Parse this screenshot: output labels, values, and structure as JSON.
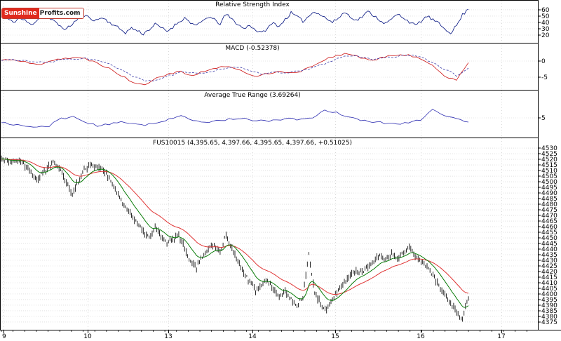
{
  "logo": {
    "brand_red": "Sunshine",
    "brand_rest": "Profits.com"
  },
  "panels": {
    "rsi": {
      "title": "Relative Strength Index"
    },
    "macd": {
      "title": "MACD (-0.52378)"
    },
    "atr": {
      "title": "Average True Range (3.69264)"
    },
    "price": {
      "title": "FUS10015 (4,395.65, 4,397.66, 4,395.65, 4,397.66, +0.51025)"
    }
  },
  "x_axis": {
    "labels": [
      "9",
      "10",
      "13",
      "14",
      "15",
      "16",
      "17"
    ]
  },
  "chart_data": {
    "type": "multi-panel-financial",
    "rsi": {
      "type": "line",
      "title": "Relative Strength Index",
      "ylim": [
        7.8,
        74.4
      ],
      "yticks": [
        60,
        50,
        40,
        30,
        20
      ],
      "color": "#00107f",
      "values": [
        50,
        46,
        40,
        47,
        43,
        36,
        44,
        52,
        47,
        41,
        34,
        29,
        38,
        46,
        51,
        47,
        43,
        48,
        42,
        36,
        30,
        24,
        31,
        27,
        22,
        29,
        37,
        32,
        26,
        33,
        41,
        47,
        40,
        34,
        42,
        49,
        44,
        38,
        53,
        45,
        37,
        30,
        36,
        28,
        23,
        31,
        39,
        34,
        45,
        55,
        49,
        42,
        50,
        58,
        52,
        46,
        40,
        47,
        56,
        50,
        43,
        49,
        57,
        51,
        44,
        38,
        45,
        53,
        48,
        41,
        35,
        42,
        50,
        44,
        38,
        30,
        24,
        35,
        52,
        61
      ]
    },
    "macd": {
      "type": "line",
      "title": "MACD",
      "last_value": -0.52378,
      "ylim": [
        -8.91,
        5.43
      ],
      "yticks": [
        0,
        -5
      ],
      "series": [
        {
          "name": "macd",
          "color": "#cc1111",
          "style": "solid",
          "values": [
            0.3,
            0.6,
            -0.4,
            -1.2,
            0.2,
            0.8,
            1.0,
            0.7,
            -0.5,
            -2.2,
            -4.5,
            -6.5,
            -7.2,
            -5.0,
            -3.8,
            -3.2,
            -4.5,
            -3.0,
            -2.2,
            -1.5,
            -3.0,
            -4.8,
            -4.0,
            -3.2,
            -3.8,
            -3.0,
            -1.5,
            0.5,
            1.8,
            2.2,
            1.0,
            0.2,
            1.2,
            1.8,
            2.0,
            0.8,
            -1.5,
            -4.5,
            -5.8,
            -0.5
          ]
        },
        {
          "name": "signal",
          "color": "#3a3aa8",
          "style": "dashed",
          "values": [
            0.2,
            0.4,
            0.1,
            -0.5,
            -0.4,
            0.3,
            0.8,
            0.8,
            0.2,
            -1.0,
            -2.8,
            -4.8,
            -6.2,
            -5.8,
            -4.5,
            -3.6,
            -3.8,
            -3.5,
            -2.8,
            -2.0,
            -2.2,
            -3.5,
            -4.0,
            -3.5,
            -3.4,
            -3.2,
            -2.2,
            -0.8,
            0.8,
            1.6,
            1.4,
            0.6,
            0.8,
            1.4,
            1.8,
            1.2,
            -0.3,
            -2.5,
            -4.5,
            -2.2
          ]
        }
      ]
    },
    "atr": {
      "type": "line",
      "title": "Average True Range",
      "last_value": 3.69264,
      "ylim": [
        -1.1,
        13.5
      ],
      "yticks": [
        5
      ],
      "color": "#2a2ab0",
      "values": [
        3.5,
        3.0,
        2.4,
        2.1,
        2.6,
        4.8,
        5.4,
        3.6,
        2.6,
        2.9,
        3.8,
        3.3,
        2.9,
        3.4,
        4.7,
        5.5,
        4.2,
        3.5,
        4.1,
        4.6,
        4.9,
        4.4,
        3.9,
        4.3,
        4.8,
        4.4,
        5.2,
        7.4,
        6.6,
        5.2,
        4.3,
        3.8,
        3.4,
        3.1,
        3.6,
        4.4,
        7.8,
        5.8,
        4.6,
        3.7
      ]
    },
    "price": {
      "type": "ohlc",
      "symbol": "FUS10015",
      "quote": {
        "open": "4,395.65",
        "high": "4,397.66",
        "low": "4,395.65",
        "close": "4,397.66",
        "change": "+0.51025"
      },
      "ylim": [
        4368.1,
        4538.8
      ],
      "yticks": [
        4530,
        4525,
        4520,
        4515,
        4510,
        4505,
        4500,
        4495,
        4490,
        4485,
        4480,
        4475,
        4470,
        4465,
        4460,
        4455,
        4450,
        4445,
        4440,
        4435,
        4430,
        4425,
        4420,
        4415,
        4410,
        4405,
        4400,
        4395,
        4390,
        4385,
        4380,
        4375
      ],
      "bar_color": "#111111",
      "ma_fast_color": "#0a7d0a",
      "ma_slow_color": "#e03434",
      "close": [
        4521,
        4519,
        4517,
        4519,
        4515,
        4509,
        4502,
        4508,
        4514,
        4517,
        4510,
        4498,
        4490,
        4500,
        4511,
        4515,
        4514,
        4511,
        4505,
        4496,
        4486,
        4477,
        4470,
        4463,
        4455,
        4450,
        4459,
        4451,
        4445,
        4449,
        4452,
        4441,
        4429,
        4423,
        4433,
        4441,
        4444,
        4438,
        4453,
        4441,
        4428,
        4419,
        4410,
        4403,
        4409,
        4413,
        4404,
        4397,
        4402,
        4395,
        4390,
        4398,
        4436,
        4401,
        4391,
        4385,
        4394,
        4403,
        4410,
        4416,
        4421,
        4419,
        4425,
        4429,
        4434,
        4431,
        4436,
        4432,
        4437,
        4441,
        4433,
        4429,
        4424,
        4416,
        4407,
        4399,
        4391,
        4384,
        4378,
        4396
      ]
    }
  }
}
